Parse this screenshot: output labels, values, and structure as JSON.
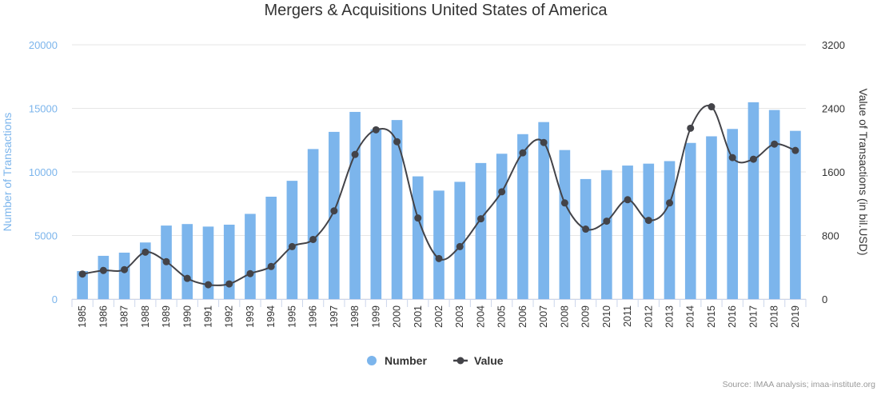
{
  "chart_data": {
    "type": "bar+line",
    "title": "Mergers & Acquisitions United States of America",
    "categories": [
      "1985",
      "1986",
      "1987",
      "1988",
      "1989",
      "1990",
      "1991",
      "1992",
      "1993",
      "1994",
      "1995",
      "1996",
      "1997",
      "1998",
      "1999",
      "2000",
      "2001",
      "2002",
      "2003",
      "2004",
      "2005",
      "2006",
      "2007",
      "2008",
      "2009",
      "2010",
      "2011",
      "2012",
      "2013",
      "2014",
      "2015",
      "2016",
      "2017",
      "2018",
      "2019"
    ],
    "series": [
      {
        "name": "Number",
        "type": "bar",
        "axis": "left",
        "color": "#7cb5ec",
        "values": [
          2200,
          3400,
          3650,
          4450,
          5780,
          5900,
          5700,
          5850,
          6700,
          8050,
          9300,
          11800,
          13150,
          14720,
          13350,
          14080,
          9650,
          8530,
          9220,
          10700,
          11430,
          12970,
          13920,
          11720,
          9440,
          10140,
          10500,
          10650,
          10850,
          12280,
          12800,
          13380,
          15480,
          14870,
          13230
        ]
      },
      {
        "name": "Value",
        "type": "line",
        "axis": "right",
        "color": "#434348",
        "values": [
          315,
          360,
          370,
          590,
          470,
          260,
          180,
          190,
          320,
          410,
          660,
          750,
          1110,
          1820,
          2130,
          1980,
          1020,
          510,
          660,
          1010,
          1350,
          1840,
          1970,
          1210,
          880,
          980,
          1250,
          990,
          1210,
          2150,
          2420,
          1780,
          1760,
          1950,
          1870
        ]
      }
    ],
    "ylabel_left": "Number of Transactions",
    "ylabel_right": "Value of Transactions (in bil.USD)",
    "ylim_left": [
      0,
      20000
    ],
    "ylim_right": [
      0,
      3200
    ],
    "yticks_left": [
      "0",
      "5000",
      "10000",
      "15000",
      "20000"
    ],
    "yticks_right": [
      "0",
      "800",
      "1600",
      "2400",
      "3200"
    ],
    "grid": true,
    "legend_position": "bottom-center",
    "legend": [
      "Number",
      "Value"
    ],
    "credit": "Source: IMAA analysis; imaa-institute.org"
  }
}
